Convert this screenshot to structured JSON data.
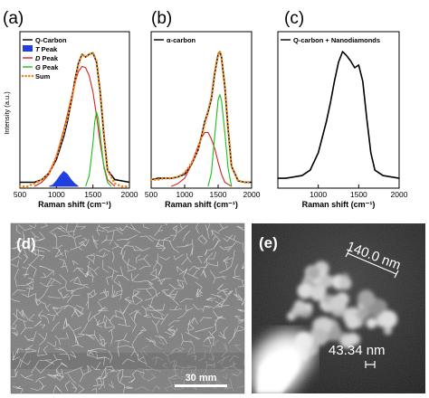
{
  "panel_labels": {
    "a": "(a)",
    "b": "(b)",
    "c": "(c)",
    "d": "(d)",
    "e": "(e)"
  },
  "axes": {
    "ylabel": "Intensity (a.u.)",
    "xlabel": "Raman shift (cm⁻¹)"
  },
  "colors": {
    "q_carbon": "#000000",
    "t_peak": "#1f3fe0",
    "d_peak": "#d62020",
    "g_peak": "#18c018",
    "sum": "#f08a1c"
  },
  "chart_data": [
    {
      "type": "line",
      "panel": "(a)",
      "xlim": [
        500,
        2000
      ],
      "xticks": [
        500,
        1000,
        1500,
        2000
      ],
      "xlabel": "Raman shift (cm⁻¹)",
      "ylabel": "Intensity (a.u.)",
      "legend_position": "top-left",
      "series": [
        {
          "name": "Q-Carbon",
          "style": "line",
          "x": [
            500,
            600,
            700,
            800,
            900,
            1000,
            1100,
            1150,
            1200,
            1250,
            1300,
            1350,
            1400,
            1450,
            1500,
            1550,
            1600,
            1650,
            1700,
            1800,
            1900,
            2000
          ],
          "y": [
            0.03,
            0.03,
            0.03,
            0.05,
            0.1,
            0.2,
            0.37,
            0.48,
            0.62,
            0.78,
            0.91,
            0.98,
            0.96,
            0.98,
            0.99,
            0.92,
            0.7,
            0.38,
            0.12,
            0.05,
            0.04,
            0.03
          ]
        },
        {
          "name": "T Peak",
          "style": "fill",
          "x": [
            900,
            950,
            1000,
            1050,
            1100,
            1150,
            1200,
            1250,
            1300
          ],
          "y": [
            0.0,
            0.01,
            0.04,
            0.08,
            0.11,
            0.09,
            0.05,
            0.02,
            0.0
          ]
        },
        {
          "name": "D Peak",
          "style": "line",
          "x": [
            700,
            800,
            900,
            1000,
            1100,
            1200,
            1250,
            1300,
            1350,
            1400,
            1450,
            1500,
            1550,
            1600,
            1650,
            1700,
            1800
          ],
          "y": [
            0.0,
            0.03,
            0.09,
            0.22,
            0.42,
            0.65,
            0.76,
            0.85,
            0.89,
            0.88,
            0.82,
            0.7,
            0.52,
            0.32,
            0.15,
            0.05,
            0.0
          ]
        },
        {
          "name": "G Peak",
          "style": "line",
          "x": [
            1400,
            1450,
            1500,
            1525,
            1550,
            1575,
            1600,
            1650,
            1700,
            1750
          ],
          "y": [
            0.0,
            0.08,
            0.32,
            0.48,
            0.55,
            0.5,
            0.38,
            0.14,
            0.03,
            0.0
          ]
        },
        {
          "name": "Sum",
          "style": "dotted",
          "x": [
            500,
            600,
            700,
            800,
            900,
            1000,
            1100,
            1200,
            1300,
            1350,
            1400,
            1450,
            1500,
            1550,
            1600,
            1650,
            1700,
            1800,
            1900,
            2000
          ],
          "y": [
            0.0,
            0.0,
            0.02,
            0.05,
            0.1,
            0.22,
            0.4,
            0.62,
            0.9,
            0.98,
            0.96,
            0.98,
            0.99,
            0.93,
            0.7,
            0.38,
            0.12,
            0.02,
            0.0,
            0.0
          ]
        }
      ]
    },
    {
      "type": "line",
      "panel": "(b)",
      "xlim": [
        500,
        2000
      ],
      "xticks": [
        500,
        1000,
        1500,
        2000
      ],
      "xlabel": "Raman shift (cm⁻¹)",
      "legend_position": "top-left",
      "series": [
        {
          "name": "α-carbon",
          "style": "line",
          "x": [
            500,
            600,
            700,
            800,
            900,
            1000,
            1100,
            1200,
            1250,
            1300,
            1350,
            1400,
            1450,
            1500,
            1525,
            1550,
            1600,
            1650,
            1700,
            1800,
            1900,
            2000
          ],
          "y": [
            0.05,
            0.06,
            0.06,
            0.06,
            0.07,
            0.09,
            0.16,
            0.27,
            0.37,
            0.48,
            0.55,
            0.65,
            0.84,
            0.98,
            1.0,
            0.96,
            0.74,
            0.42,
            0.15,
            0.04,
            0.03,
            0.03
          ]
        },
        {
          "name": "D Peak",
          "style": "line",
          "x": [
            800,
            900,
            1000,
            1100,
            1200,
            1250,
            1300,
            1350,
            1400,
            1450,
            1500,
            1550,
            1600,
            1700
          ],
          "y": [
            0.0,
            0.02,
            0.06,
            0.16,
            0.3,
            0.36,
            0.4,
            0.4,
            0.35,
            0.28,
            0.18,
            0.09,
            0.03,
            0.0
          ]
        },
        {
          "name": "G Peak",
          "style": "line",
          "x": [
            1350,
            1400,
            1450,
            1500,
            1525,
            1550,
            1600,
            1650,
            1700
          ],
          "y": [
            0.0,
            0.1,
            0.38,
            0.64,
            0.68,
            0.64,
            0.4,
            0.13,
            0.0
          ]
        },
        {
          "name": "Sum",
          "style": "dotted",
          "x": [
            500,
            600,
            700,
            800,
            900,
            1000,
            1100,
            1200,
            1300,
            1400,
            1450,
            1500,
            1525,
            1550,
            1600,
            1650,
            1700,
            1800,
            1900,
            2000
          ],
          "y": [
            0.05,
            0.05,
            0.06,
            0.06,
            0.07,
            0.1,
            0.17,
            0.28,
            0.46,
            0.66,
            0.85,
            0.98,
            1.0,
            0.96,
            0.74,
            0.42,
            0.15,
            0.04,
            0.03,
            0.03
          ]
        }
      ]
    },
    {
      "type": "line",
      "panel": "(c)",
      "xlim": [
        500,
        2000
      ],
      "xticks": [
        1000,
        1500,
        2000
      ],
      "xlabel": "Raman shift (cm⁻¹)",
      "legend_position": "top-left",
      "series": [
        {
          "name": "Q-carbon + Nanodiamonds",
          "style": "line",
          "x": [
            500,
            600,
            700,
            800,
            900,
            1000,
            1100,
            1150,
            1200,
            1250,
            1300,
            1350,
            1400,
            1450,
            1500,
            1550,
            1600,
            1650,
            1700,
            1800,
            1900,
            2000
          ],
          "y": [
            0.06,
            0.06,
            0.07,
            0.08,
            0.12,
            0.25,
            0.48,
            0.62,
            0.78,
            0.92,
            1.0,
            0.97,
            0.93,
            0.88,
            0.9,
            0.78,
            0.5,
            0.25,
            0.12,
            0.08,
            0.07,
            0.06
          ]
        }
      ]
    }
  ],
  "sem_d": {
    "scalebar_label": "30 mm"
  },
  "sem_e": {
    "measure_top": "140.0 nm",
    "measure_bottom": "43.34 nm"
  }
}
